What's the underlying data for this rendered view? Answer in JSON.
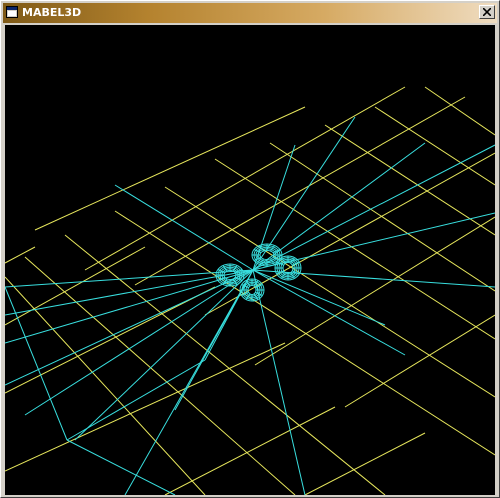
{
  "window": {
    "title": "MABEL3D",
    "close_symbol": "x",
    "icons": {
      "app": "app-window-icon",
      "close": "close-icon"
    }
  },
  "viewport": {
    "background_color": "#000000",
    "grid_color": "#e6e65c",
    "wireframe_color": "#38dede"
  }
}
